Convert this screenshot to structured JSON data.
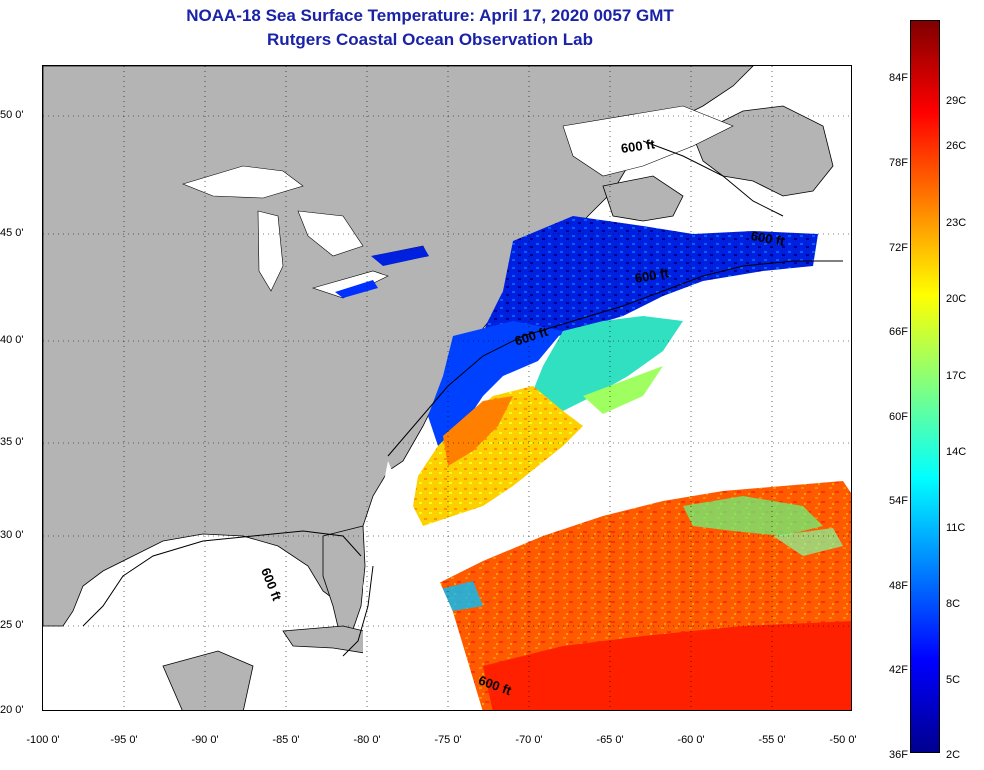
{
  "title": {
    "line1": "NOAA-18 Sea Surface Temperature:  April 17, 2020 0057 GMT",
    "line2": "Rutgers Coastal Ocean Observation Lab"
  },
  "map": {
    "lat_range": [
      20,
      52.5
    ],
    "lon_range": [
      -100,
      -50
    ],
    "land_color": "#b4b4b4",
    "water_color": "#ffffff",
    "lat_ticks": [
      {
        "value": 50,
        "label": "50 0'"
      },
      {
        "value": 45,
        "label": "45 0'"
      },
      {
        "value": 40,
        "label": "40 0'"
      },
      {
        "value": 35,
        "label": "35 0'"
      },
      {
        "value": 30,
        "label": "30 0'"
      },
      {
        "value": 25,
        "label": "25 0'"
      },
      {
        "value": 20,
        "label": "20 0'"
      }
    ],
    "lon_ticks": [
      {
        "value": -100,
        "label": "-100 0'"
      },
      {
        "value": -95,
        "label": "-95 0'"
      },
      {
        "value": -90,
        "label": "-90 0'"
      },
      {
        "value": -85,
        "label": "-85 0'"
      },
      {
        "value": -80,
        "label": "-80 0'"
      },
      {
        "value": -75,
        "label": "-75 0'"
      },
      {
        "value": -70,
        "label": "-70 0'"
      },
      {
        "value": -65,
        "label": "-65 0'"
      },
      {
        "value": -60,
        "label": "-60 0'"
      },
      {
        "value": -55,
        "label": "-55 0'"
      },
      {
        "value": -50,
        "label": "-50 0'"
      }
    ],
    "contour_labels": [
      "600 ft",
      "600 ft",
      "600 ft",
      "600 ft",
      "600 ft",
      "600 ft"
    ]
  },
  "colorbar": {
    "colors": [
      "#00008f",
      "#0000ff",
      "#0080ff",
      "#00ffff",
      "#80ff80",
      "#ffff00",
      "#ff8000",
      "#ff0000",
      "#800000"
    ],
    "fahrenheit_labels": [
      "84F",
      "78F",
      "72F",
      "66F",
      "60F",
      "54F",
      "48F",
      "42F",
      "36F"
    ],
    "celsius_labels": [
      "29C",
      "26C",
      "23C",
      "20C",
      "17C",
      "14C",
      "11C",
      "8C",
      "5C",
      "2C"
    ]
  }
}
